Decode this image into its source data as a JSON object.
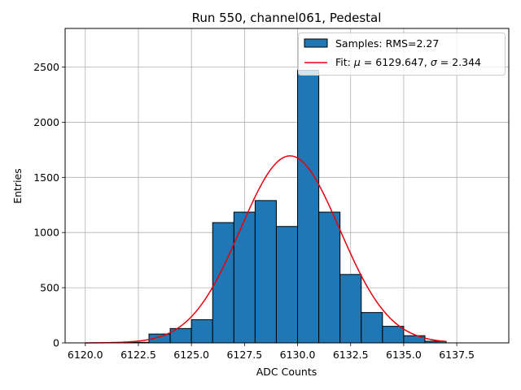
{
  "chart_data": {
    "type": "bar",
    "title": "Run 550, channel061, Pedestal",
    "xlabel": "ADC Counts",
    "ylabel": "Entries",
    "xlim": [
      6119.05,
      6139.95
    ],
    "ylim": [
      0,
      2850
    ],
    "xticks": [
      6120.0,
      6122.5,
      6125.0,
      6127.5,
      6130.0,
      6132.5,
      6135.0,
      6137.5
    ],
    "xtick_labels": [
      "6120.0",
      "6122.5",
      "6125.0",
      "6127.5",
      "6130.0",
      "6132.5",
      "6135.0",
      "6137.5"
    ],
    "yticks": [
      0,
      500,
      1000,
      1500,
      2000,
      2500
    ],
    "ytick_labels": [
      "0",
      "500",
      "1000",
      "1500",
      "2000",
      "2500"
    ],
    "grid": true,
    "legend_position": "top-right",
    "histogram": {
      "name": "Samples: RMS=2.27",
      "bin_edges": [
        6120,
        6121,
        6122,
        6123,
        6124,
        6125,
        6126,
        6127,
        6128,
        6129,
        6130,
        6131,
        6132,
        6133,
        6134,
        6135,
        6136,
        6137,
        6138,
        6139
      ],
      "counts": [
        0,
        0,
        5,
        80,
        130,
        210,
        1090,
        1185,
        1290,
        1055,
        2470,
        1185,
        620,
        275,
        150,
        65,
        15,
        0,
        0
      ],
      "color": "#1f77b4",
      "edge_color": "#000000"
    },
    "fit": {
      "name_prefix": "Fit: ",
      "mu_symbol": "μ",
      "mu_value": "= 6129.647, ",
      "sigma_symbol": "σ",
      "sigma_value": "= 2.344",
      "mu": 6129.647,
      "sigma": 2.344,
      "amplitude": 1695,
      "x_range": [
        6120,
        6137
      ],
      "color": "#e8000b"
    }
  }
}
